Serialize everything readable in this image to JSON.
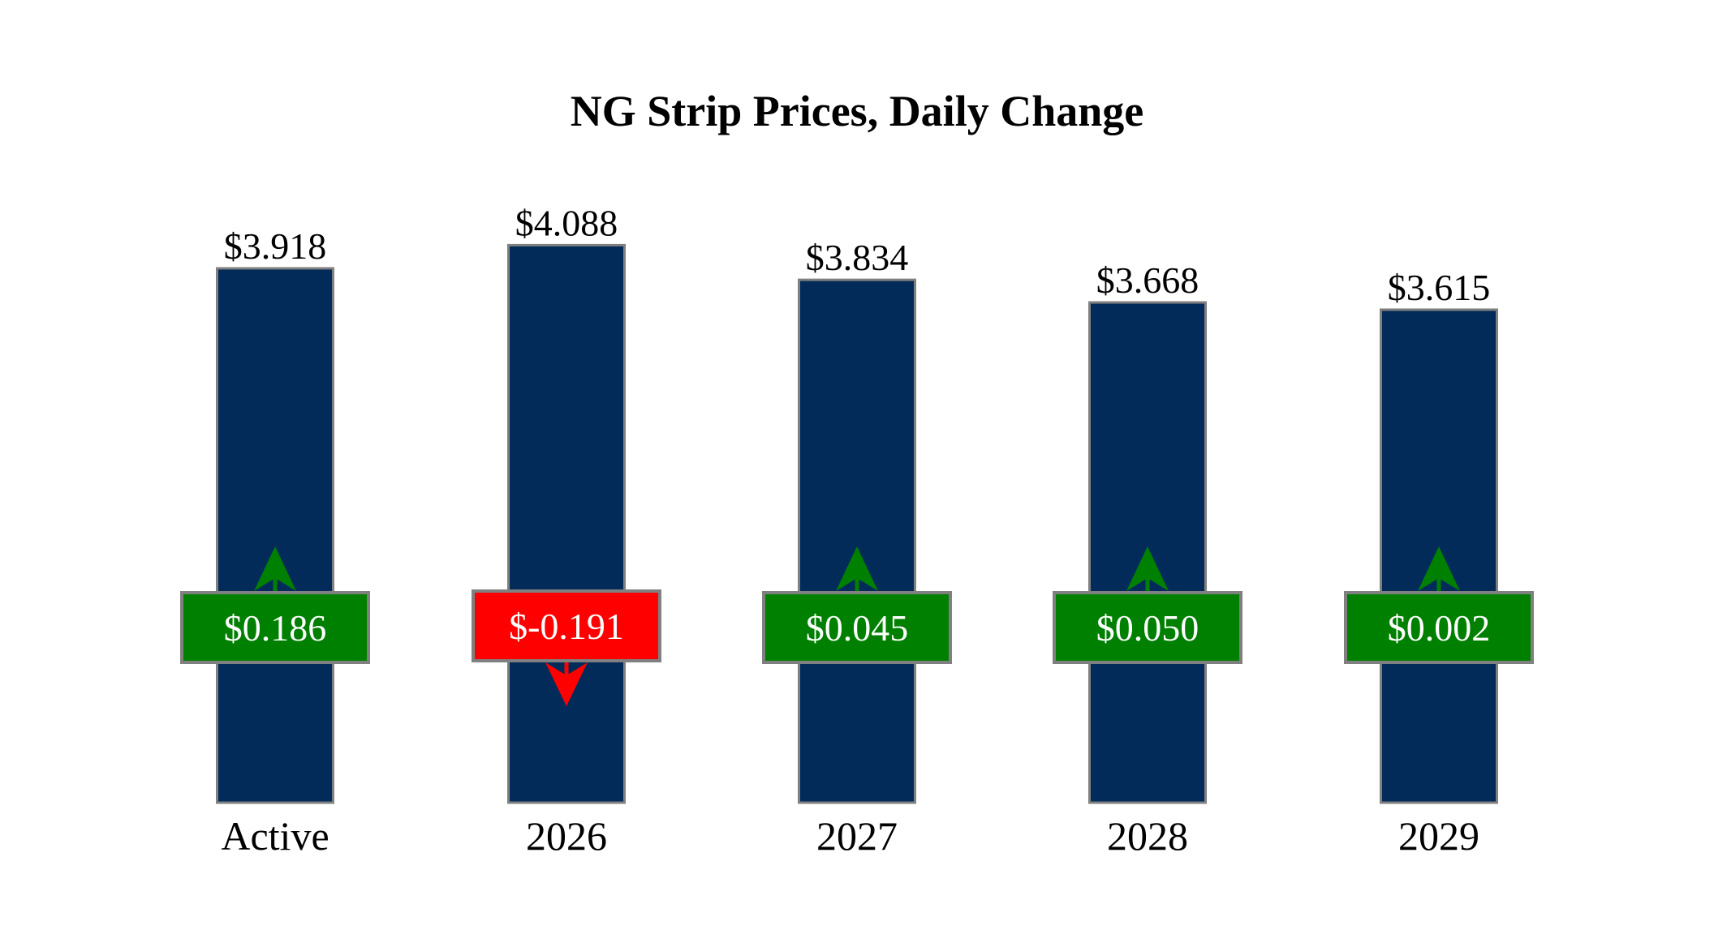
{
  "chart_data": {
    "type": "bar",
    "title": "NG Strip Prices, Daily Change",
    "xlabel": "",
    "ylabel": "",
    "ylim": [
      0,
      5.88
    ],
    "grid": false,
    "categories": [
      "Active",
      "2026",
      "2027",
      "2028",
      "2029"
    ],
    "values": [
      3.918,
      4.088,
      3.834,
      3.668,
      3.615
    ],
    "value_labels": [
      "$3.918",
      "$4.088",
      "$3.834",
      "$3.668",
      "$3.615"
    ],
    "changes": [
      0.186,
      -0.191,
      0.045,
      0.05,
      0.002
    ],
    "change_labels": [
      "$0.186",
      "$-0.191",
      "$0.045",
      "$0.050",
      "$0.002"
    ],
    "colors": {
      "bar": "#022b5a",
      "bar_border": "#808080",
      "up": "#008000",
      "down": "#ff0000",
      "change_text": "#ffffff"
    }
  }
}
